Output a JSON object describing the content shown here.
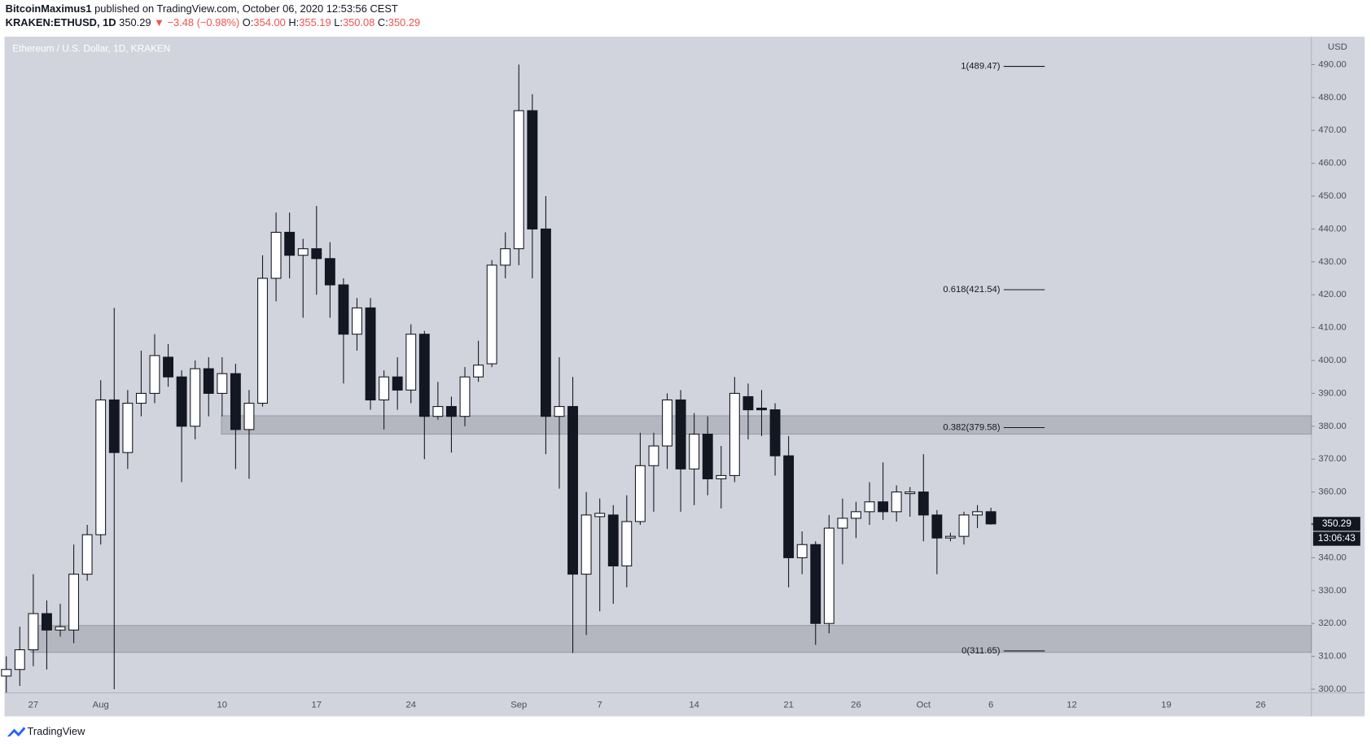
{
  "header": {
    "author": "BitcoinMaximus1",
    "published": "published on TradingView.com, October 06, 2020 12:53:56 CEST",
    "symbol": "KRAKEN:ETHUSD, 1D",
    "last": "350.29",
    "arrow": "▼",
    "change": "−3.48 (−0.98%)",
    "ohlc": [
      {
        "label": "O:",
        "text": "354.00"
      },
      {
        "label": "H:",
        "text": "355.19"
      },
      {
        "label": "L:",
        "text": "350.08"
      },
      {
        "label": "C:",
        "text": "350.29"
      }
    ]
  },
  "footer": {
    "brand": "TradingView"
  },
  "chart_data": {
    "type": "candlestick",
    "title": "Ethereum / U.S. Dollar, 1D, KRAKEN",
    "y_axis_label": "USD",
    "up_color": "#ffffff",
    "down_color": "#131722",
    "background": "#d1d4dc",
    "categories": [
      null,
      null,
      "27",
      null,
      null,
      null,
      null,
      "Aug",
      null,
      null,
      null,
      null,
      null,
      null,
      null,
      null,
      "10",
      null,
      null,
      null,
      null,
      null,
      null,
      "17",
      null,
      null,
      null,
      null,
      null,
      null,
      "24",
      null,
      null,
      null,
      null,
      null,
      null,
      null,
      "Sep",
      null,
      null,
      null,
      null,
      null,
      "7",
      null,
      null,
      null,
      null,
      null,
      null,
      "14",
      null,
      null,
      null,
      null,
      null,
      null,
      "21",
      null,
      null,
      null,
      null,
      "26",
      null,
      null,
      null,
      null,
      "Oct",
      null,
      null,
      null,
      null,
      "6",
      null,
      null,
      null,
      null,
      null,
      "12",
      null,
      null,
      null,
      null,
      null,
      null,
      "19",
      null,
      null,
      null,
      null,
      null,
      null,
      "26",
      null,
      null,
      null
    ],
    "open": [
      304,
      306,
      312,
      323,
      318,
      318,
      335,
      347,
      388,
      372,
      387,
      390,
      401,
      395,
      380,
      397.5,
      390,
      396,
      379,
      387,
      425,
      439,
      432,
      434,
      431,
      423,
      408,
      416,
      388,
      395,
      391,
      408,
      383,
      386,
      383,
      395,
      399,
      429,
      434,
      476,
      440,
      383,
      386,
      335,
      352.5,
      353,
      337.5,
      351,
      368,
      374,
      388,
      367,
      377.6,
      364,
      365,
      389,
      385.5,
      385,
      371,
      340,
      344,
      320,
      349,
      352,
      354,
      357,
      354,
      359.5,
      360,
      353,
      346,
      346.5,
      353,
      354,
      null,
      null,
      null,
      null,
      null,
      null,
      null,
      null,
      null,
      null,
      null,
      null,
      null,
      null,
      null,
      null,
      null,
      null,
      null,
      null,
      null,
      null,
      null
    ],
    "high": [
      310,
      319,
      335,
      327,
      326,
      344,
      350,
      394,
      416,
      391,
      403,
      408,
      405,
      397,
      400,
      401,
      401,
      399,
      391,
      432,
      445,
      445,
      437,
      447,
      436,
      425,
      419,
      419,
      397,
      401,
      411,
      409,
      393.5,
      389,
      398,
      406,
      430.5,
      439,
      490,
      481,
      450,
      401,
      395,
      360,
      358,
      356,
      359,
      378,
      378,
      390,
      391,
      384,
      383,
      374,
      395,
      393,
      391,
      387,
      377,
      348,
      345,
      353,
      358,
      357,
      363,
      369,
      362,
      361.5,
      371.5,
      354.5,
      347.6,
      354,
      356,
      355.19,
      null,
      null,
      null,
      null,
      null,
      null,
      null,
      null,
      null,
      null,
      null,
      null,
      null,
      null,
      null,
      null,
      null,
      null,
      null,
      null,
      null,
      null,
      null
    ],
    "low": [
      299,
      301,
      307,
      306,
      316,
      314,
      333,
      344,
      300,
      367,
      383,
      387,
      392,
      363,
      376,
      383,
      383,
      367,
      364,
      386,
      418,
      425,
      413,
      420,
      413,
      393,
      403,
      385,
      379,
      385,
      387,
      370,
      382,
      372,
      380,
      393.5,
      398,
      425,
      429,
      425,
      371.5,
      361,
      311,
      316.5,
      323.7,
      326,
      331,
      350,
      354,
      367,
      354,
      356,
      359,
      355,
      363,
      376,
      377,
      365,
      331,
      335,
      313.5,
      317,
      338,
      346,
      350,
      351.5,
      351,
      352.5,
      345,
      335,
      345,
      344,
      349,
      350.08,
      null,
      null,
      null,
      null,
      null,
      null,
      null,
      null,
      null,
      null,
      null,
      null,
      null,
      null,
      null,
      null,
      null,
      null,
      null,
      null,
      null,
      null,
      null
    ],
    "close": [
      306,
      312,
      323,
      318,
      319,
      335,
      347,
      388,
      372,
      387,
      390,
      401.5,
      395,
      380,
      397.5,
      390,
      396,
      379,
      387,
      425,
      439,
      432,
      434,
      431,
      423,
      408,
      416,
      388,
      395,
      391,
      408,
      383,
      386,
      383,
      395,
      398.6,
      429,
      434,
      476,
      440,
      383,
      386,
      335,
      353,
      353.5,
      337.5,
      351,
      368,
      374,
      388,
      367,
      377.6,
      364,
      365,
      390,
      385,
      385,
      371,
      340,
      344,
      320,
      349,
      352,
      354,
      357,
      354,
      360,
      360,
      353,
      346,
      346.5,
      353,
      354,
      350.29,
      null,
      null,
      null,
      null,
      null,
      null,
      null,
      null,
      null,
      null,
      null,
      null,
      null,
      null,
      null,
      null,
      null,
      null,
      null,
      null,
      null,
      null,
      null
    ],
    "ylim": [
      298.9,
      498.5
    ],
    "yticks": [
      {
        "value": 300,
        "label": "300.00"
      },
      {
        "value": 310,
        "label": "310.00"
      },
      {
        "value": 320,
        "label": "320.00"
      },
      {
        "value": 330,
        "label": "330.00"
      },
      {
        "value": 340,
        "label": "340.00"
      },
      {
        "value": 350,
        "label": "350.00"
      },
      {
        "value": 360,
        "label": "360.00"
      },
      {
        "value": 370,
        "label": "370.00"
      },
      {
        "value": 380,
        "label": "380.00"
      },
      {
        "value": 390,
        "label": "390.00"
      },
      {
        "value": 400,
        "label": "400.00"
      },
      {
        "value": 410,
        "label": "410.00"
      },
      {
        "value": 420,
        "label": "420.00"
      },
      {
        "value": 430,
        "label": "430.00"
      },
      {
        "value": 440,
        "label": "440.00"
      },
      {
        "value": 450,
        "label": "450.00"
      },
      {
        "value": 460,
        "label": "460.00"
      },
      {
        "value": 470,
        "label": "470.00"
      },
      {
        "value": 480,
        "label": "480.00"
      },
      {
        "value": 490,
        "label": "490.00"
      }
    ],
    "last_price": {
      "value": 350.29,
      "label": "350.29"
    },
    "countdown": "13:06:43",
    "fib_levels": [
      {
        "label": "1(489.47)",
        "value": 489.47
      },
      {
        "label": "0.618(421.54)",
        "value": 421.54
      },
      {
        "label": "0.382(379.58)",
        "value": 379.58
      },
      {
        "label": "0(311.65)",
        "value": 311.65
      }
    ],
    "zones": [
      {
        "low": 311.2,
        "high": 319.4
      },
      {
        "low": 377.6,
        "high": 383.2
      }
    ]
  }
}
